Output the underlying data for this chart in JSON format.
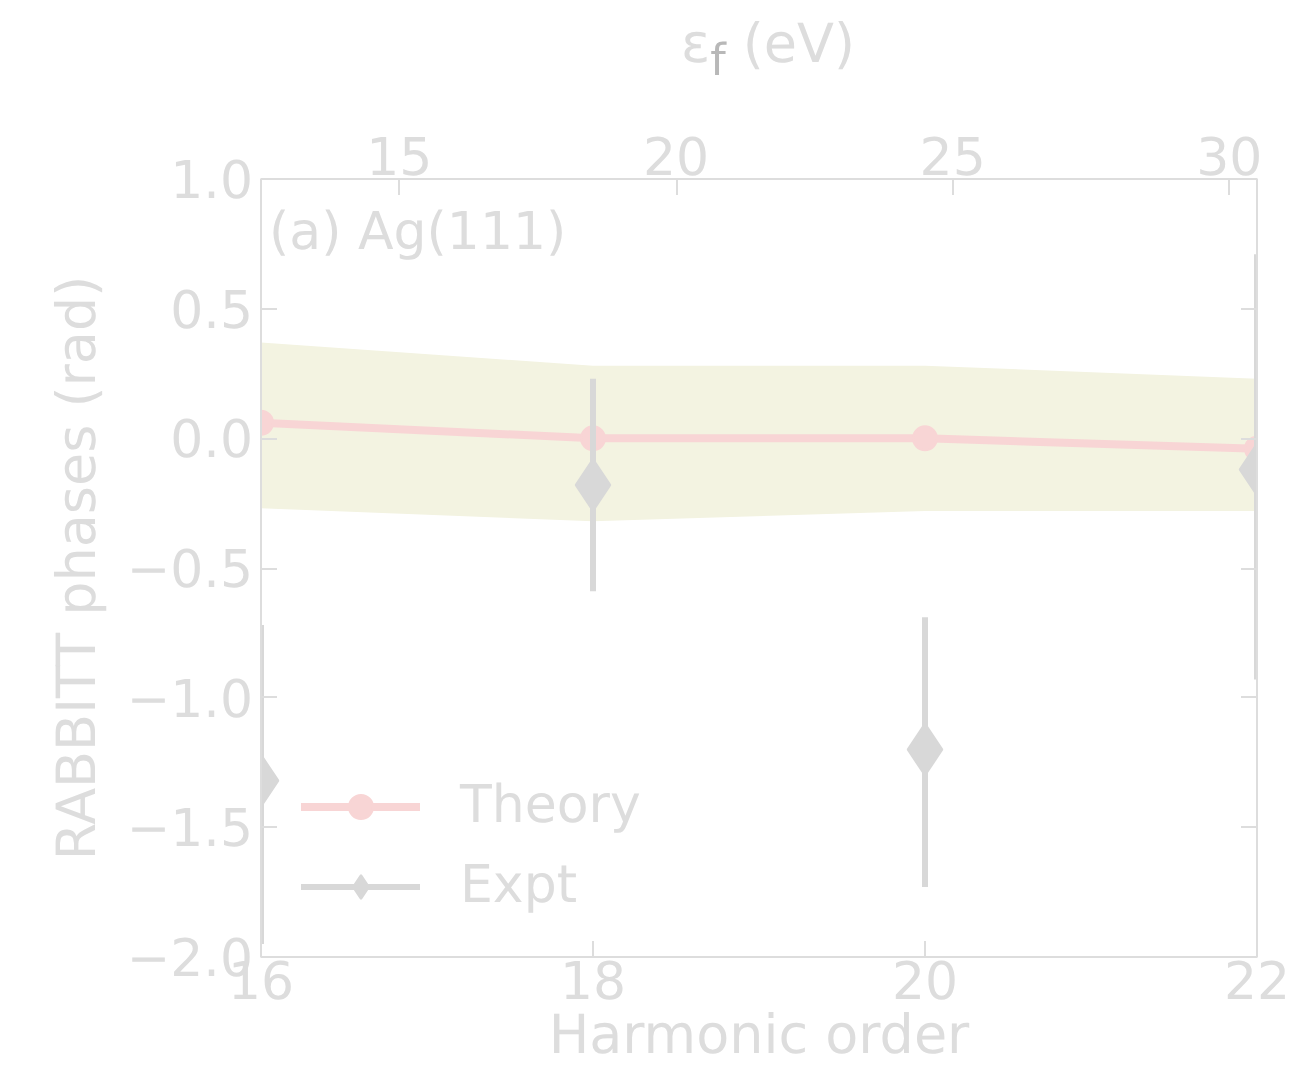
{
  "chart_data": {
    "type": "line",
    "xlabel": "Harmonic order",
    "ylabel": "RABBITT phases (rad)",
    "x2label": "ε$_{f}$ (eV)",
    "annotations": [
      "(a) Ag(111)"
    ],
    "x": [
      16,
      18,
      20,
      22
    ],
    "xlim": [
      16,
      22
    ],
    "xticks": [
      16,
      18,
      20,
      22
    ],
    "x2lim": [
      12.5,
      30.5
    ],
    "x2ticks": [
      15,
      20,
      25,
      30
    ],
    "ylim": [
      -2.0,
      1.0
    ],
    "yticks": [
      {
        "value": 1.0,
        "label": "1.0"
      },
      {
        "value": 0.5,
        "label": "0.5"
      },
      {
        "value": 0.0,
        "label": "0.0"
      },
      {
        "value": -0.5,
        "label": "−0.5"
      },
      {
        "value": -1.0,
        "label": "−1.0"
      },
      {
        "value": -1.5,
        "label": "−1.5"
      },
      {
        "value": -2.0,
        "label": "−2.0"
      }
    ],
    "series": [
      {
        "name": "Theory",
        "marker": "circle",
        "color": "#f8d5d5",
        "values": [
          0.06,
          0.0,
          0.0,
          -0.04
        ],
        "lower": [
          -0.27,
          -0.32,
          -0.28,
          -0.28
        ],
        "upper": [
          0.37,
          0.28,
          0.28,
          0.23
        ]
      },
      {
        "name": "Expt",
        "type": "scatter",
        "marker": "diamond",
        "color": "#d8d8d8",
        "values": [
          -1.32,
          -0.18,
          -1.2,
          -0.12
        ],
        "errors": [
          [
            -1.95,
            -0.72
          ],
          [
            -0.59,
            0.23
          ],
          [
            -1.73,
            -0.69
          ],
          [
            -0.93,
            0.71
          ]
        ]
      }
    ],
    "legend": "bottom left",
    "grid": false
  }
}
